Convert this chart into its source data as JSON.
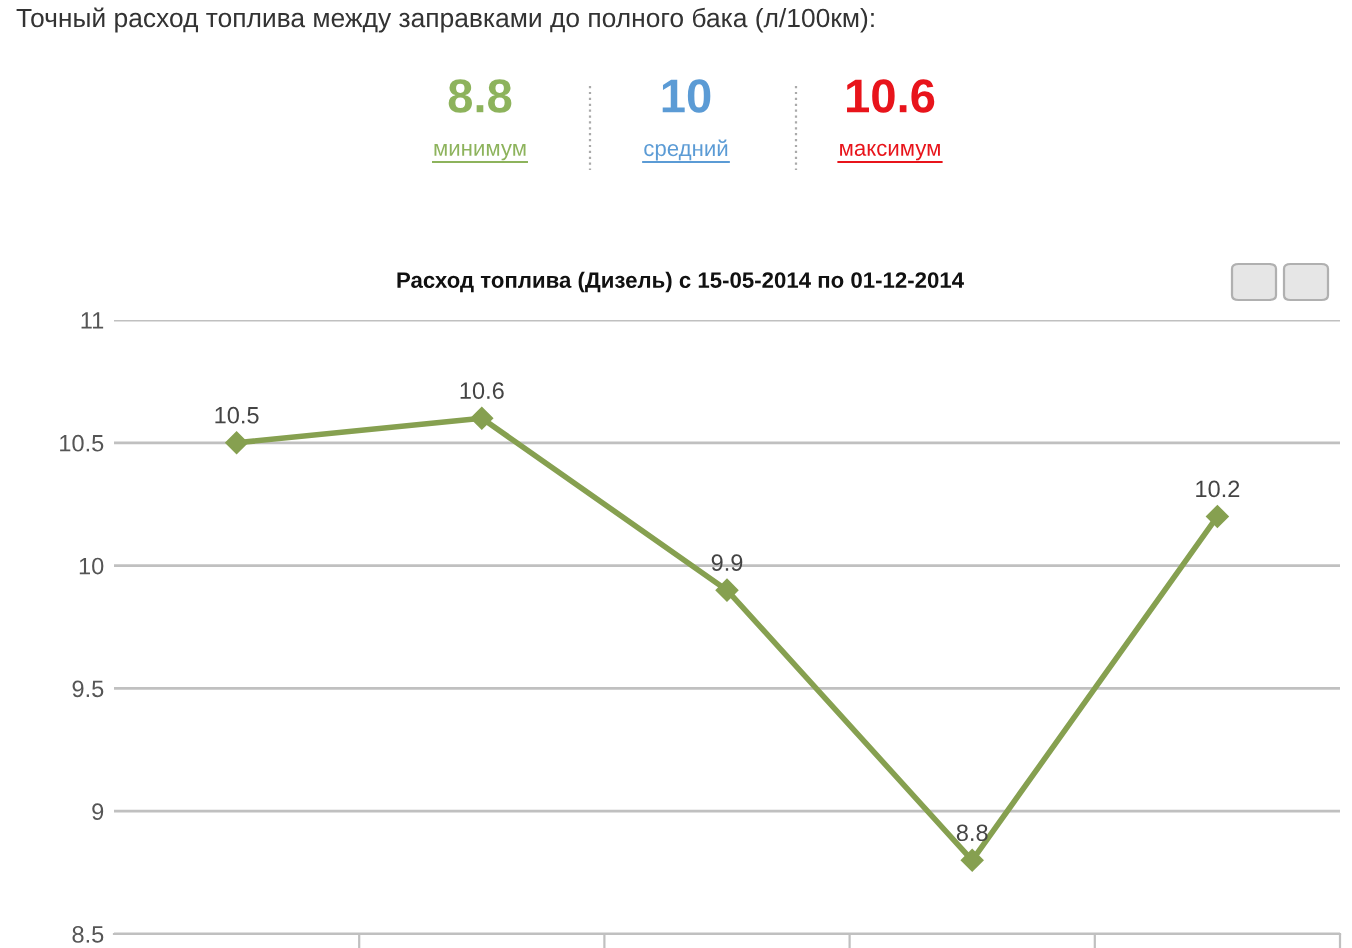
{
  "chart_data": {
    "type": "line",
    "title": "Расход топлива (Дизель) с 15-05-2014 по 01-12-2014",
    "annotations": [
      "Точный расход топлива между заправками до полного бака (л/100км):",
      "8.8",
      "минимум",
      "10",
      "средний",
      "10.6",
      "максимум"
    ],
    "categories": [
      null,
      null,
      null,
      null,
      null
    ],
    "series": [
      {
        "color": "#86a050",
        "values": [
          10.5,
          10.6,
          9.9,
          8.8,
          10.2
        ]
      }
    ],
    "ylim": [
      8.5,
      11
    ],
    "yticks": [
      8.5,
      9,
      9.5,
      10,
      10.5,
      11
    ],
    "grid": "y",
    "marker": "diamond",
    "line_style": "solid",
    "data_labels": true,
    "tick_labels": "y"
  }
}
